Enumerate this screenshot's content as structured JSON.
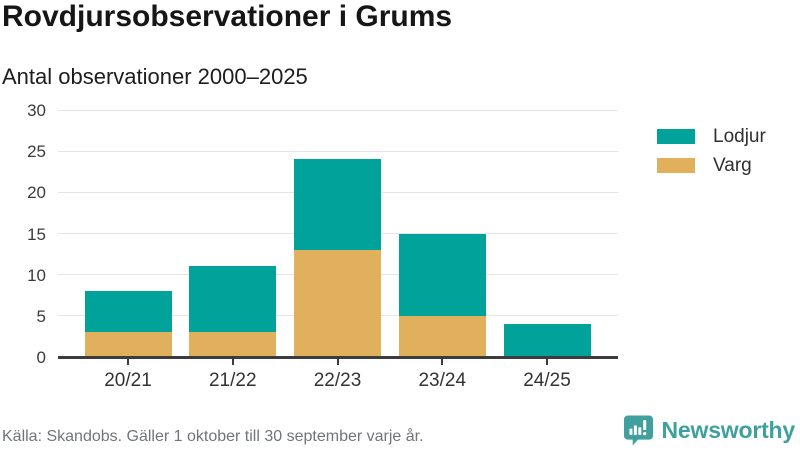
{
  "header": {
    "title": "Rovdjursobservationer i Grums",
    "subtitle": "Antal observationer 2000–2025"
  },
  "chart_data": {
    "type": "bar",
    "stacked": true,
    "title": "Rovdjursobservationer i Grums",
    "subtitle": "Antal observationer 2000–2025",
    "categories": [
      "20/21",
      "21/22",
      "22/23",
      "23/24",
      "24/25"
    ],
    "series": [
      {
        "name": "Lodjur",
        "color": "#00a29a",
        "values": [
          5,
          8,
          11,
          10,
          4
        ]
      },
      {
        "name": "Varg",
        "color": "#e0b05c",
        "values": [
          3,
          3,
          13,
          5,
          0
        ]
      }
    ],
    "stack_totals": [
      8,
      11,
      24,
      15,
      4
    ],
    "ylim": [
      0,
      30
    ],
    "yticks": [
      0,
      5,
      10,
      15,
      20,
      25,
      30
    ],
    "grid": true,
    "legend_position": "right",
    "legend_order": [
      "Lodjur",
      "Varg"
    ]
  },
  "footer": {
    "source": "Källa: Skandobs. Gäller 1 oktober till 30 september varje år.",
    "brand": "Newsworthy",
    "brand_color": "#3fa09d"
  },
  "icons": {
    "brand_icon": "newsworthy-speech-bubble-bar-chart-icon"
  }
}
